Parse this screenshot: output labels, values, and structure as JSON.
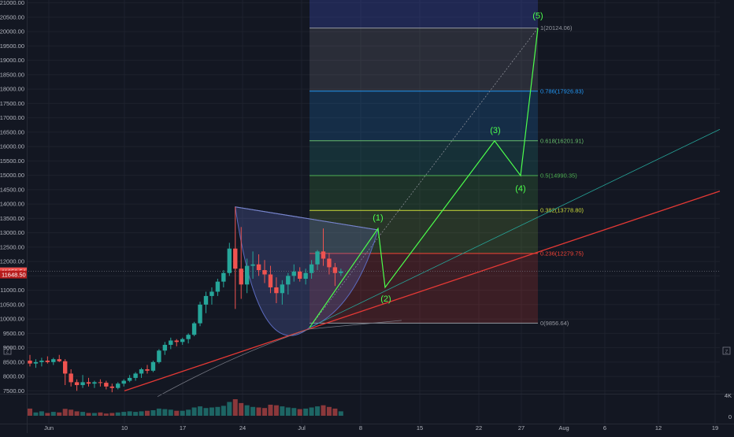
{
  "price_axis": {
    "ticks": [
      "21000.00",
      "20500.00",
      "20000.00",
      "19500.00",
      "19000.00",
      "18500.00",
      "18000.00",
      "17500.00",
      "17000.00",
      "16500.00",
      "16000.00",
      "15500.00",
      "15000.00",
      "14500.00",
      "14000.00",
      "13500.00",
      "13000.00",
      "12500.00",
      "12000.00",
      "11500.00",
      "11000.00",
      "10500.00",
      "10000.00",
      "9500.00",
      "9000.00",
      "8500.00",
      "8000.00",
      "7500.00"
    ],
    "current_price_label": "11656.54",
    "previous_price_label": "11648.50"
  },
  "volume_axis": {
    "top_label": "4K",
    "bottom_label": "0"
  },
  "time_axis": {
    "labels": [
      "Jun",
      "10",
      "17",
      "24",
      "Jul",
      "8",
      "15",
      "22",
      "27",
      "Aug",
      "6",
      "12",
      "19"
    ]
  },
  "fib_levels": [
    {
      "label": "1(20124.06)",
      "price": 20124.06,
      "color": "#9598a1"
    },
    {
      "label": "0.786(17926.83)",
      "price": 17926.83,
      "color": "#2196f3"
    },
    {
      "label": "0.618(16201.91)",
      "price": 16201.91,
      "color": "#66bb6a"
    },
    {
      "label": "0.5(14990.35)",
      "price": 14990.35,
      "color": "#4caf50"
    },
    {
      "label": "0.382(13778.80)",
      "price": 13778.8,
      "color": "#cddc39"
    },
    {
      "label": "0.236(12279.75)",
      "price": 12279.75,
      "color": "#f44336"
    },
    {
      "label": "0(9856.64)",
      "price": 9856.64,
      "color": "#9598a1"
    }
  ],
  "elliott_wave": {
    "labels": [
      "(1)",
      "(2)",
      "(3)",
      "(4)",
      "(5)"
    ],
    "color": "#4cff4c"
  },
  "colors": {
    "background": "#131722",
    "up_candle": "#26a69a",
    "down_candle": "#ef5350",
    "grid": "#1e222d",
    "trendline": "#e53935"
  },
  "chart_data": {
    "type": "candlestick",
    "title": "",
    "ylim": [
      7400,
      21100
    ],
    "candles": [
      {
        "o": 8550,
        "h": 8750,
        "l": 8350,
        "c": 8450
      },
      {
        "o": 8450,
        "h": 8600,
        "l": 8300,
        "c": 8500
      },
      {
        "o": 8500,
        "h": 8650,
        "l": 8350,
        "c": 8550
      },
      {
        "o": 8550,
        "h": 8700,
        "l": 8450,
        "c": 8500
      },
      {
        "o": 8500,
        "h": 8650,
        "l": 8400,
        "c": 8600
      },
      {
        "o": 8600,
        "h": 8750,
        "l": 8500,
        "c": 8530
      },
      {
        "o": 8530,
        "h": 8600,
        "l": 7700,
        "c": 8100
      },
      {
        "o": 8100,
        "h": 8250,
        "l": 7650,
        "c": 7800
      },
      {
        "o": 7800,
        "h": 7900,
        "l": 7500,
        "c": 7700
      },
      {
        "o": 7700,
        "h": 8050,
        "l": 7600,
        "c": 7800
      },
      {
        "o": 7800,
        "h": 7950,
        "l": 7650,
        "c": 7750
      },
      {
        "o": 7750,
        "h": 7850,
        "l": 7600,
        "c": 7800
      },
      {
        "o": 7800,
        "h": 7900,
        "l": 7650,
        "c": 7780
      },
      {
        "o": 7780,
        "h": 7850,
        "l": 7550,
        "c": 7650
      },
      {
        "o": 7650,
        "h": 7750,
        "l": 7450,
        "c": 7600
      },
      {
        "o": 7600,
        "h": 7800,
        "l": 7550,
        "c": 7750
      },
      {
        "o": 7750,
        "h": 7900,
        "l": 7650,
        "c": 7850
      },
      {
        "o": 7850,
        "h": 8050,
        "l": 7800,
        "c": 7950
      },
      {
        "o": 7950,
        "h": 8150,
        "l": 7850,
        "c": 8100
      },
      {
        "o": 8100,
        "h": 8300,
        "l": 7950,
        "c": 8250
      },
      {
        "o": 8250,
        "h": 8400,
        "l": 8100,
        "c": 8200
      },
      {
        "o": 8200,
        "h": 8550,
        "l": 8150,
        "c": 8500
      },
      {
        "o": 8500,
        "h": 8950,
        "l": 8450,
        "c": 8900
      },
      {
        "o": 8900,
        "h": 9200,
        "l": 8750,
        "c": 9100
      },
      {
        "o": 9100,
        "h": 9350,
        "l": 8950,
        "c": 9250
      },
      {
        "o": 9250,
        "h": 9300,
        "l": 9050,
        "c": 9200
      },
      {
        "o": 9200,
        "h": 9350,
        "l": 9100,
        "c": 9300
      },
      {
        "o": 9300,
        "h": 9500,
        "l": 9150,
        "c": 9450
      },
      {
        "o": 9450,
        "h": 9900,
        "l": 9400,
        "c": 9850
      },
      {
        "o": 9850,
        "h": 10600,
        "l": 9750,
        "c": 10500
      },
      {
        "o": 10500,
        "h": 10950,
        "l": 10200,
        "c": 10800
      },
      {
        "o": 10800,
        "h": 11100,
        "l": 10500,
        "c": 10950
      },
      {
        "o": 10950,
        "h": 11400,
        "l": 10800,
        "c": 11300
      },
      {
        "o": 11300,
        "h": 11700,
        "l": 11100,
        "c": 11600
      },
      {
        "o": 11600,
        "h": 12650,
        "l": 11500,
        "c": 12450
      },
      {
        "o": 12450,
        "h": 13900,
        "l": 10350,
        "c": 11750
      },
      {
        "o": 11750,
        "h": 13200,
        "l": 10700,
        "c": 11200
      },
      {
        "o": 11200,
        "h": 12100,
        "l": 10900,
        "c": 11850
      },
      {
        "o": 11850,
        "h": 12350,
        "l": 11400,
        "c": 11900
      },
      {
        "o": 11900,
        "h": 12250,
        "l": 11500,
        "c": 11700
      },
      {
        "o": 11700,
        "h": 12050,
        "l": 11250,
        "c": 11550
      },
      {
        "o": 11550,
        "h": 11850,
        "l": 10900,
        "c": 11100
      },
      {
        "o": 11100,
        "h": 11450,
        "l": 10550,
        "c": 10900
      },
      {
        "o": 10900,
        "h": 11350,
        "l": 10500,
        "c": 11200
      },
      {
        "o": 11200,
        "h": 11600,
        "l": 10850,
        "c": 11500
      },
      {
        "o": 11500,
        "h": 11900,
        "l": 11300,
        "c": 11650
      },
      {
        "o": 11650,
        "h": 11800,
        "l": 11300,
        "c": 11400
      },
      {
        "o": 11400,
        "h": 11750,
        "l": 11200,
        "c": 11600
      },
      {
        "o": 11600,
        "h": 12050,
        "l": 11400,
        "c": 11900
      },
      {
        "o": 11900,
        "h": 12400,
        "l": 11700,
        "c": 12350
      },
      {
        "o": 12350,
        "h": 13150,
        "l": 11850,
        "c": 12100
      },
      {
        "o": 12100,
        "h": 12300,
        "l": 11550,
        "c": 11800
      },
      {
        "o": 11800,
        "h": 11950,
        "l": 11150,
        "c": 11600
      },
      {
        "o": 11600,
        "h": 11750,
        "l": 11500,
        "c": 11656
      }
    ],
    "volume": [
      1300,
      600,
      800,
      500,
      700,
      600,
      1250,
      1100,
      800,
      700,
      500,
      500,
      600,
      400,
      500,
      600,
      700,
      800,
      700,
      800,
      900,
      1000,
      1300,
      1200,
      1100,
      900,
      900,
      1100,
      1500,
      1700,
      1400,
      1500,
      1600,
      1800,
      2500,
      3000,
      2300,
      1900,
      1600,
      1500,
      1400,
      2000,
      1900,
      1700,
      1500,
      1400,
      1200,
      1300,
      1500,
      1700,
      1900,
      1600,
      1300,
      800
    ]
  }
}
